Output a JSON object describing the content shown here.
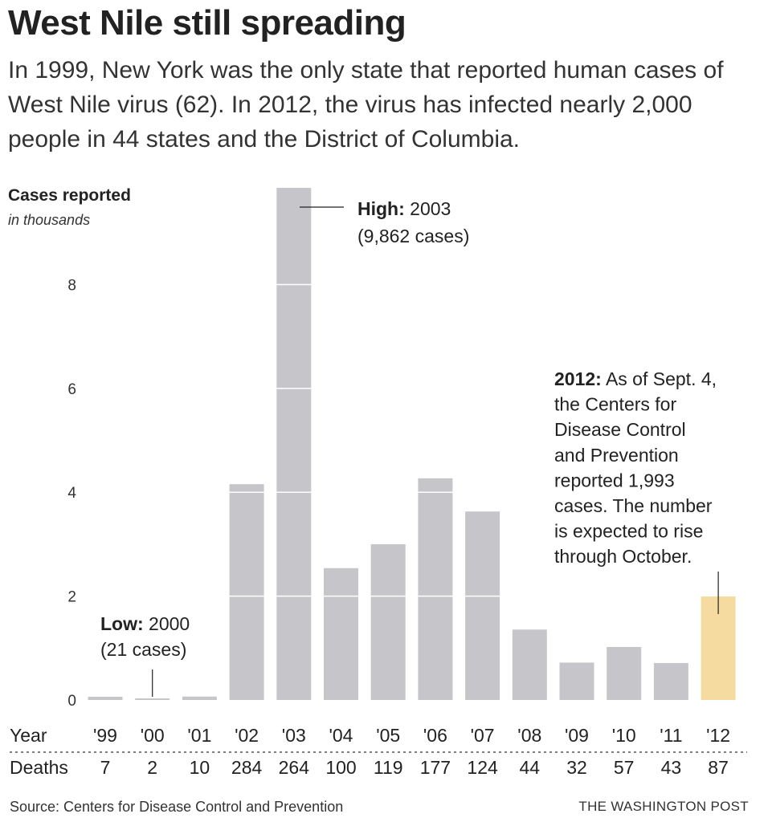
{
  "header": {
    "title": "West Nile still spreading",
    "subtitle": "In 1999, New York was the only state that reported human cases of West Nile virus (62). In 2012, the virus has infected nearly 2,000 people in 44 states and the District of Columbia."
  },
  "footer": {
    "source": "Source: Centers for Disease Control and Prevention",
    "credit": "THE WASHINGTON POST"
  },
  "chart_data": {
    "type": "bar",
    "title": "Cases reported",
    "ylabel": "Cases reported",
    "yunit": "in thousands",
    "ylim": [
      0,
      9.862
    ],
    "yticks": [
      0,
      2,
      4,
      6,
      8
    ],
    "grid": false,
    "category_row_label": "Year",
    "categories": [
      "'99",
      "'00",
      "'01",
      "'02",
      "'03",
      "'04",
      "'05",
      "'06",
      "'07",
      "'08",
      "'09",
      "'10",
      "'11",
      "'12"
    ],
    "series": [
      {
        "values": [
          0.062,
          0.021,
          0.066,
          4.156,
          9.862,
          2.539,
          3.0,
          4.269,
          3.63,
          1.356,
          0.72,
          1.021,
          0.712,
          1.993
        ]
      }
    ],
    "deaths_row_label": "Deaths",
    "deaths": [
      "7",
      "2",
      "10",
      "284",
      "264",
      "100",
      "119",
      "177",
      "124",
      "44",
      "32",
      "57",
      "43",
      "87"
    ],
    "colors": {
      "bar": "#c6c6ca",
      "highlight": "#f6dba0",
      "text": "#222222"
    },
    "highlight_index": 13,
    "annotations": {
      "high": {
        "bold": "High:",
        "line1": " 2003",
        "line2": "(9,862 cases)"
      },
      "low": {
        "bold": "Low:",
        "line1": " 2000",
        "line2": "(21 cases)"
      },
      "latest": {
        "bold": "2012:",
        "lines": [
          " As of Sept. 4,",
          "the Centers for",
          "Disease Control",
          "and Prevention",
          "reported 1,993",
          "cases. The number",
          "is expected to rise",
          "through October."
        ]
      }
    }
  }
}
